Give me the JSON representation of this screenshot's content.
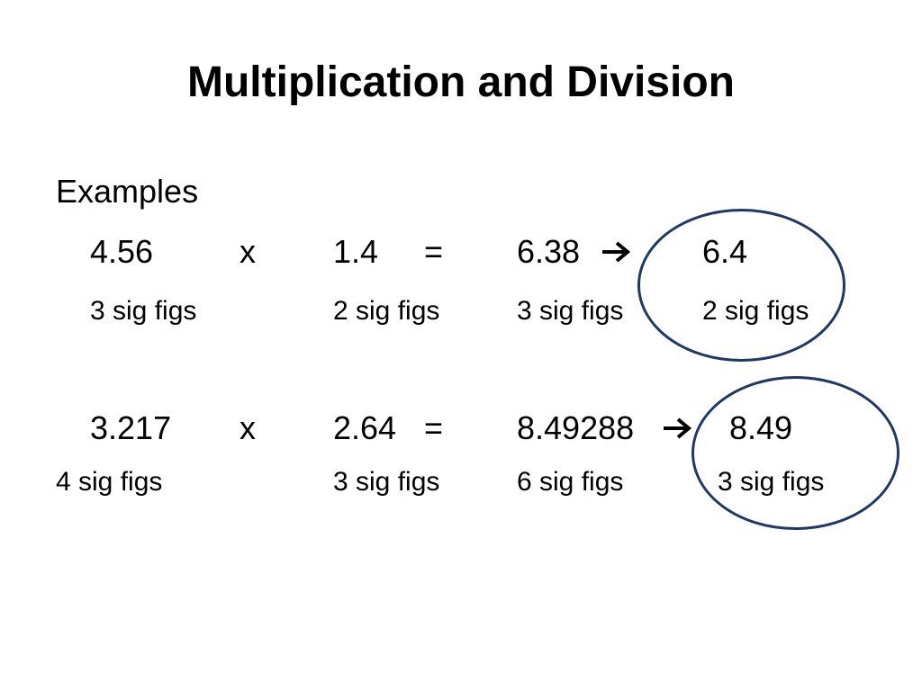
{
  "title": "Multiplication and Division",
  "examples_label": "Examples",
  "colors": {
    "circle_outline": "#1f3864",
    "text": "#000000"
  },
  "example1": {
    "a": "4.56",
    "op": "x",
    "b": "1.4",
    "eq": "=",
    "result": "6.38",
    "arrow_icon": "right-arrow-icon",
    "rounded": "6.4",
    "a_sig": "3 sig figs",
    "b_sig": "2 sig figs",
    "result_sig": "3 sig figs",
    "rounded_sig": "2 sig figs"
  },
  "example2": {
    "a": "3.217",
    "op": "x",
    "b": "2.64",
    "eq": "=",
    "result": "8.49288",
    "arrow_icon": "right-arrow-icon",
    "rounded": "8.49",
    "a_sig": "4 sig figs",
    "b_sig": "3 sig figs",
    "result_sig": "6 sig figs",
    "rounded_sig": "3 sig figs"
  }
}
